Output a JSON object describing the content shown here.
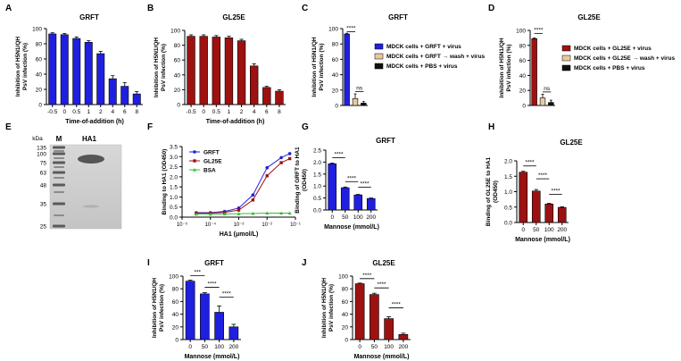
{
  "colors": {
    "blue": "#1f1fe0",
    "red": "#9e1111",
    "beige": "#e8c9a0",
    "black": "#111111",
    "green": "#33c033"
  },
  "gel": {
    "letter": "E",
    "unit": "kDa",
    "lane_m": "M",
    "lane_ha": "HA1",
    "markers": [
      "135",
      "100",
      "75",
      "63",
      "48",
      "35",
      "25"
    ]
  },
  "chart_data": [
    {
      "id": "A",
      "letter": "A",
      "type": "bar",
      "title": "GRFT",
      "ylabel": [
        "Inhibition of H5N1/QH",
        "PsV infection (%)"
      ],
      "xlabel": "Time-of-addition (h)",
      "categories": [
        "-0.5",
        "0",
        "0.5",
        "1",
        "2",
        "4",
        "6",
        "8"
      ],
      "values": [
        93,
        92,
        87,
        82,
        67,
        34,
        24,
        14
      ],
      "errors": [
        1.5,
        1.5,
        2,
        2,
        3,
        4,
        5,
        3
      ],
      "ylim": [
        0,
        100
      ],
      "yticks": [
        "0",
        "20",
        "40",
        "60",
        "80",
        "100"
      ],
      "color": "blue"
    },
    {
      "id": "B",
      "letter": "B",
      "type": "bar",
      "title": "GL25E",
      "ylabel": [
        "Inhibition of H5N1/QH",
        "PsV infection (%)"
      ],
      "xlabel": "Time-of-addition (h)",
      "categories": [
        "-0.5",
        "0",
        "0.5",
        "1",
        "2",
        "4",
        "6",
        "8"
      ],
      "values": [
        92,
        92,
        91,
        90,
        86,
        52,
        23,
        18
      ],
      "errors": [
        2,
        2,
        2,
        2,
        2,
        3,
        1.5,
        2
      ],
      "ylim": [
        0,
        100
      ],
      "yticks": [
        "0",
        "20",
        "40",
        "60",
        "80",
        "100"
      ],
      "color": "red"
    },
    {
      "id": "C",
      "letter": "C",
      "type": "bar",
      "title": "GRFT",
      "ylabel": [
        "Inhibition of H5N1/QH",
        "PsV infection (%)"
      ],
      "values": [
        93,
        9,
        3
      ],
      "errors": [
        1,
        6,
        2
      ],
      "colors": [
        "blue",
        "beige",
        "black"
      ],
      "legend": [
        "MDCK cells + GRFT + virus",
        "MDCK cells + GRFT  →  wash + virus",
        "MDCK cells + PBS + virus"
      ],
      "sig": [
        "****",
        "ns"
      ],
      "ylim": [
        0,
        100
      ],
      "yticks": [
        "0",
        "20",
        "40",
        "60",
        "80",
        "100"
      ]
    },
    {
      "id": "D",
      "letter": "D",
      "type": "bar",
      "title": "GL25E",
      "ylabel": [
        "Inhibition of H5N1/QH",
        "PsV infection (%)"
      ],
      "values": [
        89,
        10,
        4
      ],
      "errors": [
        1,
        5,
        3
      ],
      "colors": [
        "red",
        "beige",
        "black"
      ],
      "legend": [
        "MDCK cells + GL25E + virus",
        "MDCK cells + GL25E  →  wash + virus",
        "MDCK cells + PBS + virus"
      ],
      "sig": [
        "****",
        "ns"
      ],
      "ylim": [
        0,
        100
      ],
      "yticks": [
        "0",
        "20",
        "40",
        "60",
        "80",
        "100"
      ]
    },
    {
      "id": "F",
      "letter": "F",
      "type": "line",
      "title": "",
      "ylabel": [
        "Binding to HA1 (OD450)"
      ],
      "xlabel": "HA1 (μmol/L)",
      "xticks": [
        "10⁻⁵",
        "10⁻⁴",
        "10⁻³",
        "10⁻²",
        "10⁻¹"
      ],
      "yticks": [
        "0.0",
        "0.5",
        "1.0",
        "1.5",
        "2.0",
        "2.5",
        "3.0",
        "3.5"
      ],
      "ylim": [
        0,
        3.5
      ],
      "xlog": [
        -5,
        -1
      ],
      "x": [
        -4.5,
        -4,
        -3.5,
        -3,
        -2.5,
        -2,
        -1.5,
        -1.2
      ],
      "series": [
        {
          "name": "GRFT",
          "color": "blue",
          "marker": "circle",
          "values": [
            0.22,
            0.22,
            0.28,
            0.45,
            1.1,
            2.45,
            2.95,
            3.15
          ]
        },
        {
          "name": "GL25E",
          "color": "red",
          "marker": "square",
          "values": [
            0.2,
            0.2,
            0.24,
            0.35,
            0.85,
            2.05,
            2.7,
            2.9
          ]
        },
        {
          "name": "BSA",
          "color": "green",
          "marker": "triangle",
          "values": [
            0.15,
            0.15,
            0.16,
            0.17,
            0.18,
            0.2,
            0.2,
            0.2
          ]
        }
      ]
    },
    {
      "id": "G",
      "letter": "G",
      "type": "bar",
      "title": "GRFT",
      "ylabel": [
        "Binding of GRFT to HA1",
        "(OD450)"
      ],
      "xlabel": "Mannose (mmol/L)",
      "categories": [
        "0",
        "50",
        "100",
        "200"
      ],
      "values": [
        1.93,
        0.93,
        0.63,
        0.48
      ],
      "errors": [
        0.03,
        0.03,
        0.02,
        0.02
      ],
      "ylim": [
        0,
        2.5
      ],
      "yticks": [
        "0.0",
        "0.5",
        "1.0",
        "1.5",
        "2.0",
        "2.5"
      ],
      "color": "blue",
      "sig": [
        "****",
        "****",
        "****"
      ]
    },
    {
      "id": "H",
      "letter": "H",
      "type": "bar",
      "title": "GL25E",
      "ylabel": [
        "Binding of GL25E to HA1",
        "(OD450)"
      ],
      "xlabel": "Mannose (mmol/L)",
      "categories": [
        "0",
        "50",
        "100",
        "200"
      ],
      "values": [
        1.63,
        1.02,
        0.6,
        0.49
      ],
      "errors": [
        0.03,
        0.05,
        0.02,
        0.02
      ],
      "ylim": [
        0,
        2.0
      ],
      "yticks": [
        "0.0",
        "0.5",
        "1.0",
        "1.5",
        "2.0"
      ],
      "color": "red",
      "sig": [
        "****",
        "****",
        "****"
      ]
    },
    {
      "id": "I",
      "letter": "I",
      "type": "bar",
      "title": "GRFT",
      "ylabel": [
        "Inhibition of H5N1/QH",
        "PsV infection (%)"
      ],
      "xlabel": "Mannose (mmol/L)",
      "categories": [
        "0",
        "50",
        "100",
        "200"
      ],
      "values": [
        92,
        72,
        43,
        20
      ],
      "errors": [
        1.5,
        2,
        10,
        4
      ],
      "ylim": [
        0,
        100
      ],
      "yticks": [
        "0",
        "20",
        "40",
        "60",
        "80",
        "100"
      ],
      "color": "blue",
      "sig": [
        "***",
        "****",
        "****"
      ]
    },
    {
      "id": "J",
      "letter": "J",
      "type": "bar",
      "title": "GL25E",
      "ylabel": [
        "Inhibition of H5N1/QH",
        "PsV infection (%)"
      ],
      "xlabel": "Mannose (mmol/L)",
      "categories": [
        "0",
        "50",
        "100",
        "200"
      ],
      "values": [
        88,
        71,
        33,
        8
      ],
      "errors": [
        1,
        2,
        3,
        2
      ],
      "ylim": [
        0,
        100
      ],
      "yticks": [
        "0",
        "20",
        "40",
        "60",
        "80",
        "100"
      ],
      "color": "red",
      "sig": [
        "****",
        "****",
        "****"
      ]
    }
  ]
}
